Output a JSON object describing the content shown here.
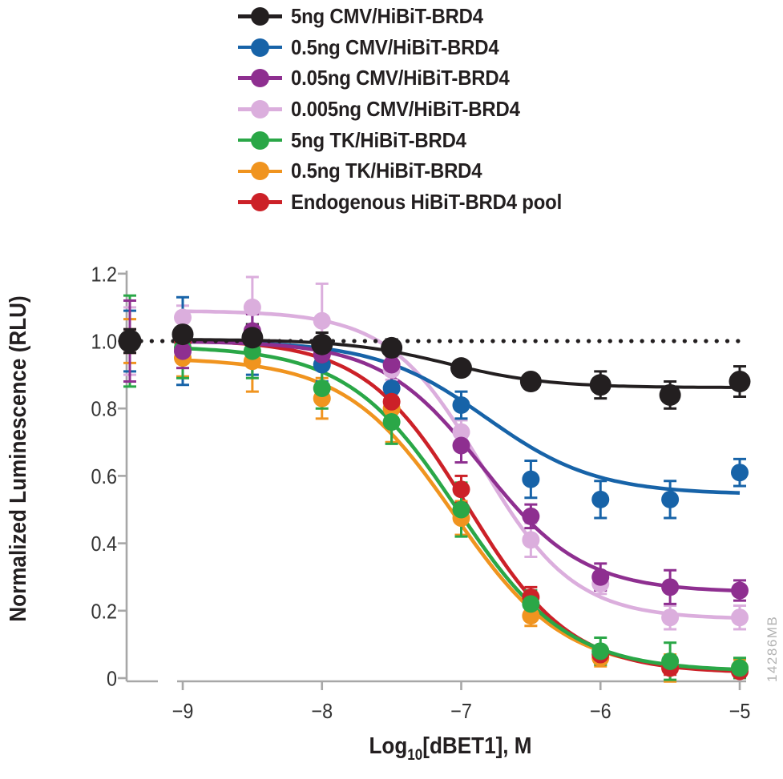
{
  "figure": {
    "watermark": "14286MB",
    "background_color": "#ffffff",
    "axis_color": "#a7a7a7",
    "tick_label_color": "#333333",
    "title_color": "#231f20",
    "watermark_color": "#b3b3b3",
    "dotted_line_color": "#231f20"
  },
  "legend": {
    "items": [
      {
        "key": "5ng-cmv",
        "label": "5ng CMV/HiBiT-BRD4",
        "color": "#231f20"
      },
      {
        "key": "0.5ng-cmv",
        "label": "0.5ng CMV/HiBiT-BRD4",
        "color": "#1763a8"
      },
      {
        "key": "0.05ng-cmv",
        "label": "0.05ng CMV/HiBiT-BRD4",
        "color": "#8e2f90"
      },
      {
        "key": "0.005ng-cmv",
        "label": "0.005ng CMV/HiBiT-BRD4",
        "color": "#dbaedd"
      },
      {
        "key": "5ng-tk",
        "label": "5ng TK/HiBiT-BRD4",
        "color": "#2aa747"
      },
      {
        "key": "0.5ng-tk",
        "label": "0.5ng TK/HiBiT-BRD4",
        "color": "#f0941f"
      },
      {
        "key": "endogenous",
        "label": "Endogenous HiBiT-BRD4 pool",
        "color": "#cc2128"
      }
    ]
  },
  "chart_data": {
    "type": "scatter",
    "subtype": "dose-response-curves-with-error-bars",
    "title": "",
    "xlabel": "Log10[dBET1], M",
    "xlabel_parts": {
      "pre": "Log",
      "sub": "10",
      "post": "[dBET1], M"
    },
    "ylabel": "Normalized Luminescence (RLU)",
    "xlim": [
      -9,
      -5
    ],
    "ylim": [
      0,
      1.2
    ],
    "x_ticks": [
      -9,
      -8,
      -7,
      -6,
      -5
    ],
    "x_tick_labels": [
      "−9",
      "−8",
      "−7",
      "−6",
      "−5"
    ],
    "y_ticks": [
      0,
      0.2,
      0.4,
      0.6,
      0.8,
      1.0,
      1.2
    ],
    "y_tick_labels": [
      "0",
      "0.2",
      "0.4",
      "0.6",
      "0.8",
      "1.0",
      "1.2"
    ],
    "grid": false,
    "legend_position": "top",
    "x_axis_break_before_first_tick": true,
    "reference_line_y": 1.0,
    "untreated_control_plotted_on_y_axis": true,
    "x": [
      -9,
      -8.5,
      -8,
      -7.5,
      -7,
      -6.5,
      -6,
      -5.5,
      -5
    ],
    "series": [
      {
        "name": "5ng CMV/HiBiT-BRD4",
        "key": "5ng-cmv",
        "color": "#231f20",
        "values": [
          1.02,
          1.01,
          0.99,
          0.98,
          0.92,
          0.88,
          0.87,
          0.84,
          0.88
        ],
        "errors": [
          0.04,
          0.04,
          0.035,
          0.025,
          0.02,
          0.02,
          0.04,
          0.04,
          0.045
        ],
        "control": {
          "y": 1.0,
          "err": 0.035
        },
        "fit": {
          "top": 1.005,
          "bottom": 0.862,
          "logic50": -7.1,
          "hill": 1.2
        }
      },
      {
        "name": "0.5ng CMV/HiBiT-BRD4",
        "key": "0.5ng-cmv",
        "color": "#1763a8",
        "values": [
          1.0,
          1.0,
          0.93,
          0.86,
          0.81,
          0.59,
          0.53,
          0.53,
          0.61
        ],
        "errors": [
          0.13,
          0.1,
          0.05,
          0.04,
          0.04,
          0.055,
          0.055,
          0.055,
          0.04
        ],
        "control": {
          "y": 1.0,
          "err": 0.09
        },
        "fit": {
          "top": 1.0,
          "bottom": 0.545,
          "logic50": -6.82,
          "hill": 1.1
        }
      },
      {
        "name": "0.05ng CMV/HiBiT-BRD4",
        "key": "0.05ng-cmv",
        "color": "#8e2f90",
        "values": [
          0.97,
          1.03,
          0.96,
          0.93,
          0.69,
          0.48,
          0.3,
          0.27,
          0.26
        ],
        "errors": [
          0.05,
          0.05,
          0.04,
          0.055,
          0.05,
          0.035,
          0.04,
          0.05,
          0.03
        ],
        "control": {
          "y": 1.0,
          "err": 0.12
        },
        "fit": {
          "top": 1.0,
          "bottom": 0.255,
          "logic50": -6.85,
          "hill": 1.2
        }
      },
      {
        "name": "0.005ng CMV/HiBiT-BRD4",
        "key": "0.005ng-cmv",
        "color": "#dbaedd",
        "values": [
          1.07,
          1.1,
          1.06,
          0.915,
          0.73,
          0.41,
          0.28,
          0.18,
          0.18
        ],
        "errors": [
          0.035,
          0.09,
          0.11,
          0.03,
          0.035,
          0.05,
          0.03,
          0.035,
          0.035
        ],
        "control": {
          "y": 1.0,
          "err": 0.1
        },
        "fit": {
          "top": 1.09,
          "bottom": 0.175,
          "logic50": -6.855,
          "hill": 1.3
        }
      },
      {
        "name": "5ng TK/HiBiT-BRD4",
        "key": "5ng-tk",
        "color": "#2aa747",
        "values": [
          0.98,
          0.97,
          0.86,
          0.76,
          0.5,
          0.22,
          0.08,
          0.05,
          0.03
        ],
        "errors": [
          0.09,
          0.08,
          0.06,
          0.065,
          0.08,
          0.04,
          0.04,
          0.055,
          0.03
        ],
        "control": {
          "y": 1.0,
          "err": 0.135
        },
        "fit": {
          "top": 0.985,
          "bottom": 0.02,
          "logic50": -7.03,
          "hill": 1.1
        }
      },
      {
        "name": "0.5ng TK/HiBiT-BRD4",
        "key": "0.5ng-tk",
        "color": "#f0941f",
        "values": [
          0.95,
          0.94,
          0.83,
          0.8,
          0.475,
          0.185,
          0.06,
          0.03,
          0.03
        ],
        "errors": [
          0.055,
          0.09,
          0.06,
          0.1,
          0.05,
          0.03,
          0.025,
          0.04,
          0.025
        ],
        "control": {
          "y": 1.0,
          "err": 0.065
        },
        "fit": {
          "top": 0.95,
          "bottom": 0.02,
          "logic50": -7.05,
          "hill": 1.1
        }
      },
      {
        "name": "Endogenous HiBiT-BRD4 pool",
        "key": "endogenous",
        "color": "#cc2128",
        "values": [
          1.0,
          1.0,
          0.96,
          0.82,
          0.56,
          0.24,
          0.07,
          0.03,
          0.02
        ],
        "errors": [
          0.03,
          0.03,
          0.03,
          0.035,
          0.04,
          0.03,
          0.025,
          0.02,
          0.02
        ],
        "control": {
          "y": 1.0,
          "err": 0.035
        },
        "fit": {
          "top": 1.005,
          "bottom": 0.015,
          "logic50": -6.955,
          "hill": 1.17
        }
      }
    ]
  }
}
